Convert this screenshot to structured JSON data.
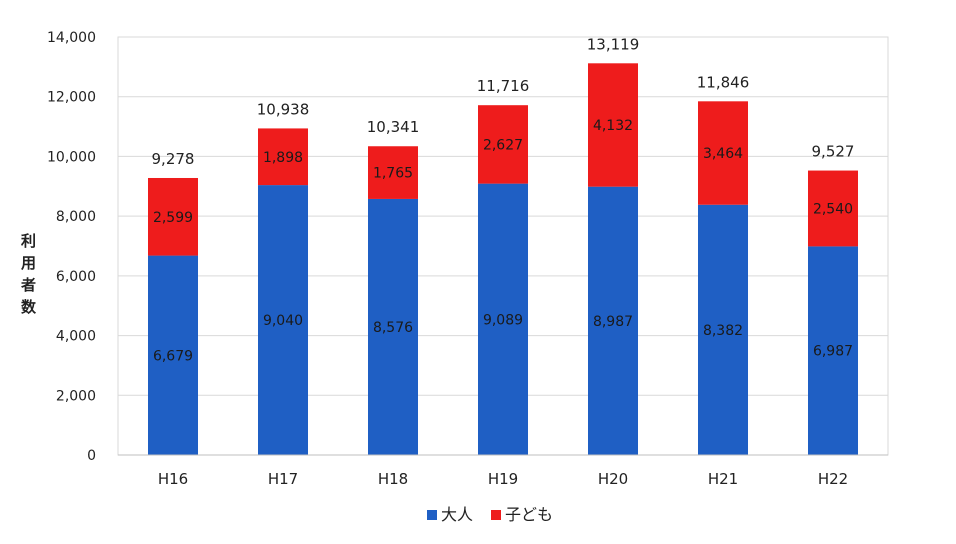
{
  "chart_data": {
    "type": "bar",
    "stacked": true,
    "title": "",
    "xlabel": "",
    "ylabel": "利用者数",
    "categories": [
      "H16",
      "H17",
      "H18",
      "H19",
      "H20",
      "H21",
      "H22"
    ],
    "series": [
      {
        "name": "大人",
        "values": [
          6679,
          9040,
          8576,
          9089,
          8987,
          8382,
          6987
        ],
        "labels": [
          "6,679",
          "9,040",
          "8,576",
          "9,089",
          "8,987",
          "8,382",
          "6,987"
        ],
        "color": "#1f5fc4"
      },
      {
        "name": "子ども",
        "values": [
          2599,
          1898,
          1765,
          2627,
          4132,
          3464,
          2540
        ],
        "labels": [
          "2,599",
          "1,898",
          "1,765",
          "2,627",
          "4,132",
          "3,464",
          "2,540"
        ],
        "color": "#ee1c1c"
      }
    ],
    "totals": [
      9278,
      10938,
      10341,
      11716,
      13119,
      11846,
      9527
    ],
    "total_labels": [
      "9,278",
      "10,938",
      "10,341",
      "11,716",
      "13,119",
      "11,846",
      "9,527"
    ],
    "ylim": [
      0,
      14000
    ],
    "yticks": [
      0,
      2000,
      4000,
      6000,
      8000,
      10000,
      12000,
      14000
    ],
    "ytick_labels": [
      "0",
      "2,000",
      "4,000",
      "6,000",
      "8,000",
      "10,000",
      "12,000",
      "14,000"
    ],
    "grid": true,
    "legend_position": "bottom"
  }
}
